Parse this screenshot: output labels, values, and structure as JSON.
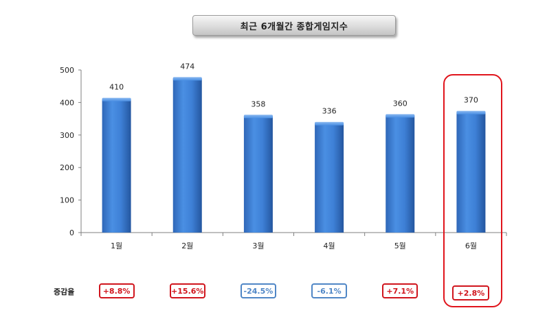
{
  "chart_data": {
    "type": "bar",
    "title": "최근 6개월간 종합게임지수",
    "categories": [
      "1월",
      "2월",
      "3월",
      "4월",
      "5월",
      "6월"
    ],
    "values": [
      410,
      474,
      358,
      336,
      360,
      370
    ],
    "ylim": [
      0,
      500
    ],
    "yticks": [
      0,
      100,
      200,
      300,
      400,
      500
    ],
    "xlabel": "",
    "ylabel": "",
    "grid": false,
    "highlight_category": "6월",
    "bar_color": "#3b7dd8",
    "growth": {
      "label": "증감율",
      "values": [
        "+8.8%",
        "+15.6%",
        "-24.5%",
        "-6.1%",
        "+7.1%",
        "+2.8%"
      ],
      "positive_color": "#d0141c",
      "negative_color": "#4f86c6"
    }
  }
}
